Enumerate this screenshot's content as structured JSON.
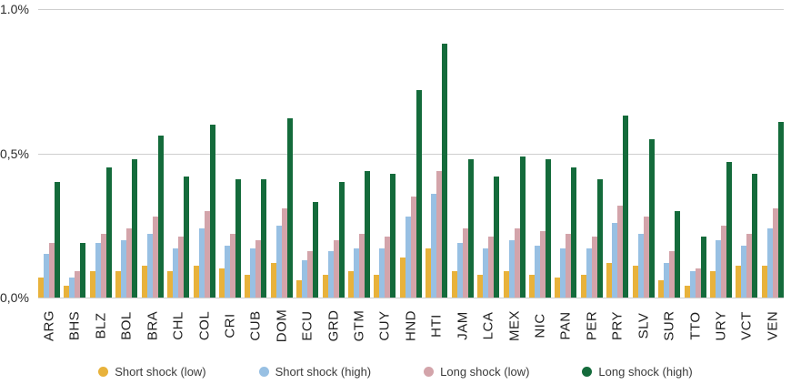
{
  "chart_data": {
    "type": "bar",
    "title": "",
    "xlabel": "",
    "ylabel": "",
    "ylim": [
      0,
      1.0
    ],
    "grid": true,
    "legend_position": "bottom",
    "y_ticks": [
      {
        "label": "1.0%",
        "value": 1.0
      },
      {
        "label": "0,5%",
        "value": 0.5
      },
      {
        "label": "0,0%",
        "value": 0.0
      }
    ],
    "categories": [
      "ARG",
      "BHS",
      "BLZ",
      "BOL",
      "BRA",
      "CHL",
      "COL",
      "CRI",
      "CUB",
      "DOM",
      "ECU",
      "GRD",
      "GTM",
      "CUY",
      "HND",
      "HTI",
      "JAM",
      "LCA",
      "MEX",
      "NIC",
      "PAN",
      "PER",
      "PRY",
      "SLV",
      "SUR",
      "TTO",
      "URY",
      "VCT",
      "VEN"
    ],
    "series": [
      {
        "name": "Short shock (low)",
        "color": "#E8B23B",
        "values": [
          0.07,
          0.04,
          0.09,
          0.09,
          0.11,
          0.09,
          0.11,
          0.1,
          0.08,
          0.12,
          0.06,
          0.08,
          0.09,
          0.08,
          0.14,
          0.17,
          0.09,
          0.08,
          0.09,
          0.08,
          0.07,
          0.08,
          0.12,
          0.11,
          0.06,
          0.04,
          0.09,
          0.11,
          0.11
        ]
      },
      {
        "name": "Short shock (high)",
        "color": "#98C0E3",
        "values": [
          0.15,
          0.07,
          0.19,
          0.2,
          0.22,
          0.17,
          0.24,
          0.18,
          0.17,
          0.25,
          0.13,
          0.16,
          0.17,
          0.17,
          0.28,
          0.36,
          0.19,
          0.17,
          0.2,
          0.18,
          0.17,
          0.17,
          0.26,
          0.22,
          0.12,
          0.09,
          0.2,
          0.18,
          0.24
        ]
      },
      {
        "name": "Long shock (low)",
        "color": "#D3A4AA",
        "values": [
          0.19,
          0.09,
          0.22,
          0.24,
          0.28,
          0.21,
          0.3,
          0.22,
          0.2,
          0.31,
          0.16,
          0.2,
          0.22,
          0.21,
          0.35,
          0.44,
          0.24,
          0.21,
          0.24,
          0.23,
          0.22,
          0.21,
          0.32,
          0.28,
          0.16,
          0.1,
          0.25,
          0.22,
          0.31
        ]
      },
      {
        "name": "Long shock (high)",
        "color": "#146B3B",
        "values": [
          0.4,
          0.19,
          0.45,
          0.48,
          0.56,
          0.42,
          0.6,
          0.41,
          0.41,
          0.62,
          0.33,
          0.4,
          0.44,
          0.43,
          0.72,
          0.88,
          0.48,
          0.42,
          0.49,
          0.48,
          0.45,
          0.41,
          0.63,
          0.55,
          0.3,
          0.21,
          0.47,
          0.43,
          0.61
        ]
      }
    ],
    "colors": {
      "gridline": "#cfcfcf",
      "tick_text": "#2b2b2b",
      "axis_text": "#1f1f1f",
      "legend_text": "#3a3a3a",
      "background": "#ffffff"
    }
  }
}
